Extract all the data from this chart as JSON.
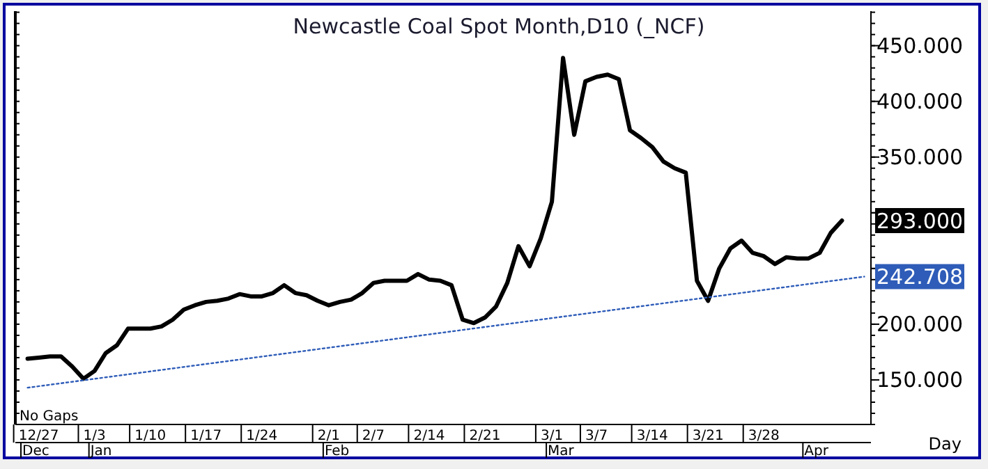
{
  "chart_data": {
    "type": "line",
    "title": "Newcastle  Coal  Spot  Month,D10   (_NCF)",
    "xlabel": "Day",
    "categories": [
      null,
      "12/27",
      null,
      null,
      null,
      null,
      "1/3",
      null,
      null,
      null,
      null,
      "1/10",
      null,
      null,
      null,
      null,
      "1/17",
      null,
      null,
      null,
      null,
      "1/24",
      null,
      null,
      null,
      null,
      null,
      "2/1",
      null,
      null,
      null,
      "2/7",
      null,
      null,
      null,
      null,
      "2/14",
      null,
      null,
      null,
      null,
      "2/21",
      null,
      null,
      null,
      null,
      null,
      "3/1",
      null,
      null,
      null,
      "3/7",
      null,
      null,
      null,
      null,
      "3/14",
      null,
      null,
      null,
      null,
      "3/21",
      null,
      null,
      null,
      null,
      "3/28",
      null,
      null,
      null,
      null,
      null,
      null,
      null,
      null,
      null
    ],
    "series": [
      {
        "color": "#000000",
        "line_style": "solid",
        "values": [
          169,
          170,
          171,
          171,
          162,
          151,
          158,
          174,
          181,
          196,
          196,
          196,
          198,
          204,
          213,
          217,
          220,
          221,
          223,
          227,
          225,
          225,
          228,
          235,
          228,
          226,
          221,
          217,
          220,
          222,
          228,
          237,
          239,
          239,
          239,
          245,
          240,
          239,
          235,
          204,
          201,
          206,
          216,
          237,
          270,
          252,
          277,
          310,
          439,
          370,
          418,
          422,
          424,
          420,
          374,
          367,
          359,
          346,
          340,
          336,
          239,
          221,
          250,
          268,
          275,
          264,
          261,
          254,
          260,
          259,
          259,
          264,
          282,
          293,
          null,
          null
        ]
      },
      {
        "color": "#2e5cb8",
        "line_style": "dotted",
        "values": [
          143,
          null,
          null,
          null,
          null,
          null,
          null,
          null,
          null,
          null,
          null,
          null,
          null,
          null,
          null,
          null,
          null,
          null,
          null,
          null,
          null,
          null,
          null,
          null,
          null,
          null,
          null,
          null,
          null,
          null,
          null,
          null,
          null,
          null,
          null,
          null,
          null,
          null,
          null,
          null,
          null,
          null,
          null,
          null,
          null,
          null,
          null,
          null,
          null,
          null,
          null,
          null,
          null,
          null,
          null,
          null,
          null,
          null,
          null,
          null,
          null,
          null,
          null,
          null,
          null,
          null,
          null,
          null,
          null,
          null,
          null,
          null,
          null,
          null,
          null,
          242.7
        ]
      }
    ],
    "ylim": [
      110,
      481
    ],
    "yticks": [
      {
        "value": 150,
        "label": "150.000"
      },
      {
        "value": 200,
        "label": "200.000"
      },
      {
        "value": 250,
        "label": null
      },
      {
        "value": 300,
        "label": null
      },
      {
        "value": 350,
        "label": "350.000"
      },
      {
        "value": 400,
        "label": "400.000"
      },
      {
        "value": 450,
        "label": "450.000"
      }
    ],
    "grid": false,
    "annotations": [
      "No Gaps",
      "Dec",
      "Jan",
      "Feb",
      "Mar",
      "Apr",
      "293.000",
      "242.708"
    ]
  }
}
